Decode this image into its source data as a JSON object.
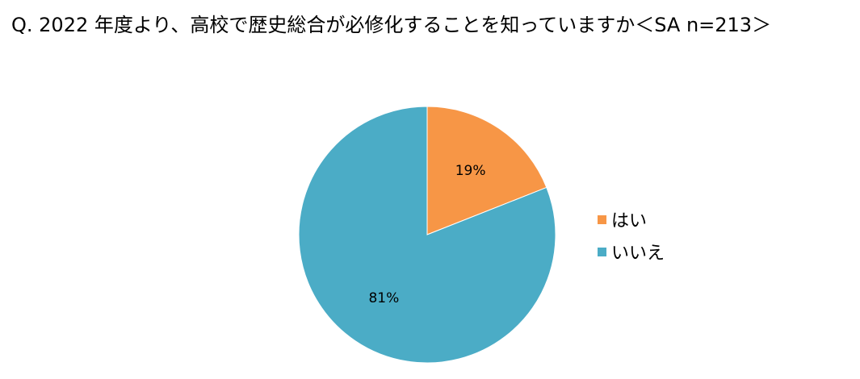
{
  "chart_data": {
    "type": "pie",
    "title": "Q. 2022 年度より、高校で歴史総合が必修化することを知っていますか＜SA n=213＞",
    "categories": [
      "はい",
      "いいえ"
    ],
    "values": [
      19,
      81
    ],
    "data_labels": [
      "19%",
      "81%"
    ],
    "colors": [
      "#F79646",
      "#4BACC6"
    ],
    "legend_position": "right"
  }
}
